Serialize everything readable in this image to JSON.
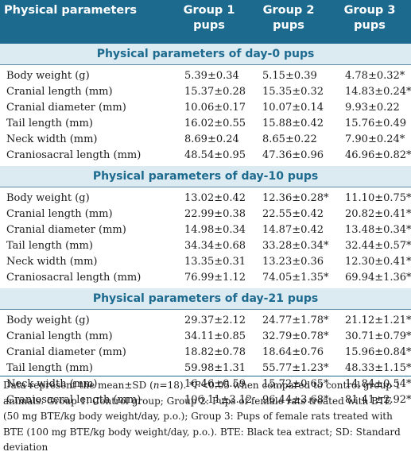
{
  "header": {
    "col1": "Physical parameters",
    "col2": "Group 1 pups",
    "col2_line1": "Group 1",
    "col2_line2": "pups",
    "col3_line1": "Group 2",
    "col3_line2": "pups",
    "col4_line1": "Group 3",
    "col4_line2": "pups"
  },
  "sections": [
    {
      "title": "Physical parameters of day-0 pups",
      "rows": [
        {
          "param": "Body weight (g)",
          "g1": "5.39±0.34",
          "g2": "5.15±0.39",
          "g3": "4.78±0.32*"
        },
        {
          "param": "Cranial length (mm)",
          "g1": "15.37±0.28",
          "g2": "15.35±0.32",
          "g3": "14.83±0.24*"
        },
        {
          "param": "Cranial diameter (mm)",
          "g1": "10.06±0.17",
          "g2": "10.07±0.14",
          "g3": "9.93±0.22"
        },
        {
          "param": "Tail length (mm)",
          "g1": "16.02±0.55",
          "g2": "15.88±0.42",
          "g3": "15.76±0.49"
        },
        {
          "param": "Neck width (mm)",
          "g1": "8.69±0.24",
          "g2": "8.65±0.22",
          "g3": "7.90±0.24*"
        },
        {
          "param": "Craniosacral length (mm)",
          "g1": "48.54±0.95",
          "g2": "47.36±0.96",
          "g3": "46.96±0.82*"
        }
      ]
    },
    {
      "title": "Physical parameters of day-10 pups",
      "rows": [
        {
          "param": "Body weight (g)",
          "g1": "13.02±0.42",
          "g2": "12.36±0.28*",
          "g3": "11.10±0.75*"
        },
        {
          "param": "Cranial length (mm)",
          "g1": "22.99±0.38",
          "g2": "22.55±0.42",
          "g3": "20.82±0.41*"
        },
        {
          "param": "Cranial diameter (mm)",
          "g1": "14.98±0.34",
          "g2": "14.87±0.42",
          "g3": "13.48±0.34*"
        },
        {
          "param": "Tail length (mm)",
          "g1": "34.34±0.68",
          "g2": "33.28±0.34*",
          "g3": "32.44±0.57*"
        },
        {
          "param": "Neck width (mm)",
          "g1": "13.35±0.31",
          "g2": "13.23±0.36",
          "g3": "12.30±0.41*"
        },
        {
          "param": "Craniosacral length (mm)",
          "g1": "76.99±1.12",
          "g2": "74.05±1.35*",
          "g3": "69.94±1.36*"
        }
      ]
    },
    {
      "title": "Physical parameters of day-21 pups",
      "rows": [
        {
          "param": "Body weight (g)",
          "g1": "29.37±2.12",
          "g2": "24.77±1.78*",
          "g3": "21.12±1.21*"
        },
        {
          "param": "Cranial length (mm)",
          "g1": "34.11±0.85",
          "g2": "32.79±0.78*",
          "g3": "30.71±0.79*"
        },
        {
          "param": "Cranial diameter (mm)",
          "g1": "18.82±0.78",
          "g2": "18.64±0.76",
          "g3": "15.96±0.84*"
        },
        {
          "param": "Tail length (mm)",
          "g1": "59.98±1.31",
          "g2": "55.77±1.23*",
          "g3": "48.33±1.15*"
        },
        {
          "param": "Neck width (mm)",
          "g1": "16.46±0.59",
          "g2": "15.72±0.65*",
          "g3": "14.84±0.54*"
        },
        {
          "param": "Craniosacral length (mm)",
          "g1": "106.11±3.12",
          "g2": "96.44±3.68*",
          "g3": "81.41±2.92*"
        }
      ]
    }
  ],
  "footnote": "Data represent the mean±SD (n=18). *P<0.05 when compared to control group 1 animals. Group 1: Control group; Group 2: Pups of female rats treated with BTE (50 mg BTE/kg body weight/day, p.o.); Group 3: Pups of female rats treated with BTE (100 mg BTE/kg body weight/day, p.o.). BTE: Black tea extract; SD: Standard deviation",
  "colors": {
    "header_bg": "#1d6a8f",
    "section_bg": "#dceaf2",
    "section_text": "#1d6a8f"
  }
}
